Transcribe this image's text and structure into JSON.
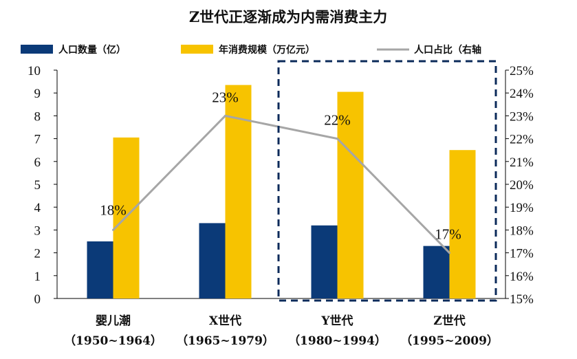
{
  "chart_data": {
    "type": "bar",
    "title": "Z世代正逐渐成为内需消费主力",
    "categories": [
      {
        "name": "婴儿潮",
        "years": "（1950~1964）"
      },
      {
        "name": "X世代",
        "years": "（1965~1979）"
      },
      {
        "name": "Y世代",
        "years": "（1980~1994）"
      },
      {
        "name": "Z世代",
        "years": "（1995~2009）"
      }
    ],
    "series": [
      {
        "name": "人口数量（亿）",
        "type": "bar",
        "axis": "left",
        "color": "#0b3a78",
        "values": [
          2.5,
          3.3,
          3.2,
          2.3
        ]
      },
      {
        "name": "年消费规模（万亿元）",
        "type": "bar",
        "axis": "left",
        "color": "#f7c300",
        "values": [
          7.05,
          9.35,
          9.05,
          6.5
        ]
      },
      {
        "name": "人口占比（右轴",
        "type": "line",
        "axis": "right",
        "color": "#a6a6a6",
        "values": [
          18,
          23,
          22,
          17
        ],
        "labels": [
          "18%",
          "23%",
          "22%",
          "17%"
        ]
      }
    ],
    "y_left": {
      "min": 0,
      "max": 10,
      "ticks": [
        "0",
        "1",
        "2",
        "3",
        "4",
        "5",
        "6",
        "7",
        "8",
        "9",
        "10"
      ]
    },
    "y_right": {
      "min": 15,
      "max": 25,
      "ticks": [
        "15%",
        "16%",
        "17%",
        "18%",
        "19%",
        "20%",
        "21%",
        "22%",
        "23%",
        "24%",
        "25%"
      ]
    },
    "highlight": {
      "from_category": 2,
      "to_category": 3,
      "style": "dashed",
      "color": "#0b2a5a"
    },
    "grid": false,
    "legend_position": "top"
  }
}
